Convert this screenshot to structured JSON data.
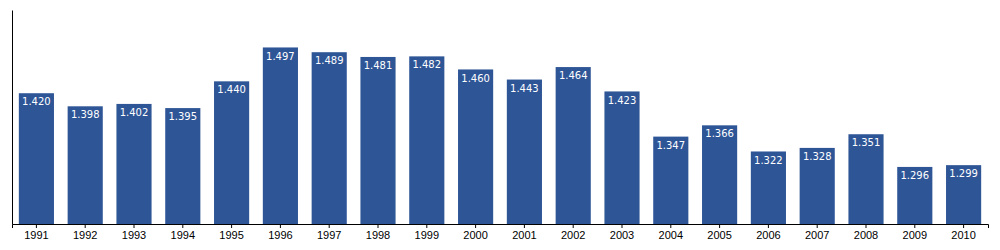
{
  "chart_data": {
    "type": "bar",
    "categories": [
      "1991",
      "1992",
      "1993",
      "1994",
      "1995",
      "1996",
      "1997",
      "1998",
      "1999",
      "2000",
      "2001",
      "2002",
      "2003",
      "2004",
      "2005",
      "2006",
      "2007",
      "2008",
      "2009",
      "2010"
    ],
    "values": [
      1.42,
      1.398,
      1.402,
      1.395,
      1.44,
      1.497,
      1.489,
      1.481,
      1.482,
      1.46,
      1.443,
      1.464,
      1.423,
      1.347,
      1.366,
      1.322,
      1.328,
      1.351,
      1.296,
      1.299
    ],
    "value_labels": [
      "1.420",
      "1.398",
      "1.402",
      "1.395",
      "1.440",
      "1.497",
      "1.489",
      "1.481",
      "1.482",
      "1.460",
      "1.443",
      "1.464",
      "1.423",
      "1.347",
      "1.366",
      "1.322",
      "1.328",
      "1.351",
      "1.296",
      "1.299"
    ],
    "color": "#2E5596",
    "ylim": [
      1.2,
      1.56
    ],
    "data_labels": true,
    "tick_labels": "x"
  }
}
